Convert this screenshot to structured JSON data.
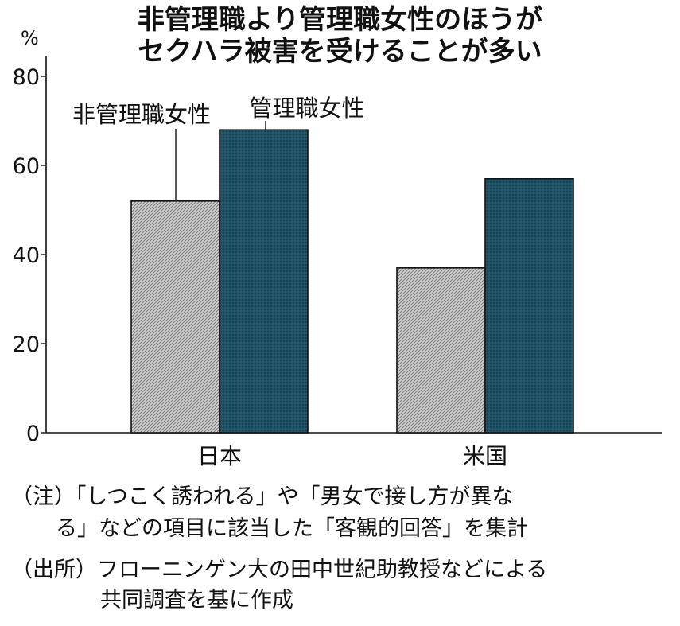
{
  "chart_data": {
    "type": "bar",
    "title": [
      "非管理職より管理職女性のほうが",
      "セクハラ被害を受けることが多い"
    ],
    "ylabel": "%",
    "ylim": [
      0,
      80
    ],
    "yticks": [
      0,
      20,
      40,
      60,
      80
    ],
    "categories": [
      "日本",
      "米国"
    ],
    "series": [
      {
        "name": "非管理職女性",
        "values": [
          52,
          37
        ],
        "color": "#c8c8c8",
        "pattern": "hatched"
      },
      {
        "name": "管理職女性",
        "values": [
          68,
          57
        ],
        "color": "#1d4f63",
        "pattern": "dotted"
      }
    ],
    "grid": false,
    "legend": "callouts above Japan bars"
  },
  "notes": [
    "（注）「しつこく誘われる」や「男女で接し方が異な",
    "る」などの項目に該当した「客観的回答」を集計",
    "（出所）フローニンゲン大の田中世紀助教授などによる",
    "共同調査を基に作成"
  ]
}
